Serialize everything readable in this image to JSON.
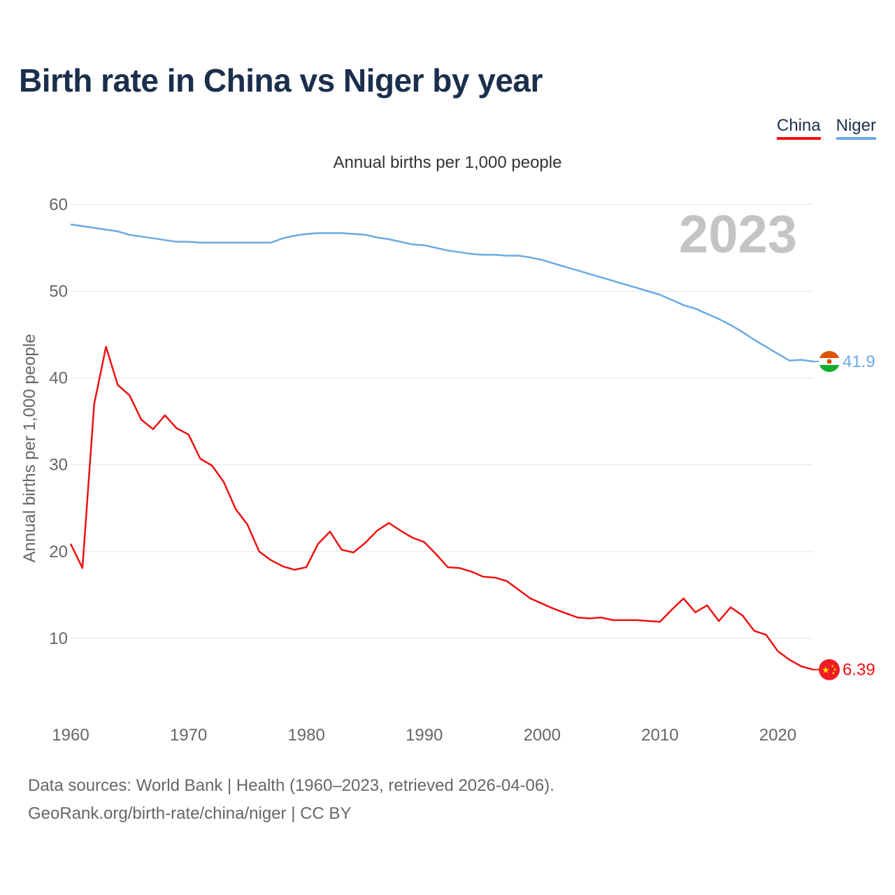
{
  "title": "Birth rate in China vs Niger by year",
  "legend": {
    "china_label": "China",
    "niger_label": "Niger"
  },
  "footer": {
    "line1": "Data sources: World Bank | Health (1960–2023, retrieved 2026-04-06).",
    "line2": "GeoRank.org/birth-rate/china/niger | CC BY"
  },
  "colors": {
    "china": "#ee1111",
    "niger": "#6aaae4",
    "watermark": "#c4c4c4",
    "grid": "#e6e6e6",
    "axis_text": "#666666"
  },
  "chart_data": {
    "type": "line",
    "subtitle": "Annual births per 1,000 people",
    "ylabel": "Annual births per 1,000 people",
    "xlabel": "",
    "year_watermark": "2023",
    "xlim": [
      1960,
      2023
    ],
    "ylim": [
      2.5,
      61
    ],
    "y_ticks": [
      10,
      20,
      30,
      40,
      50,
      60
    ],
    "x_ticks": [
      1960,
      1970,
      1980,
      1990,
      2000,
      2010,
      2020
    ],
    "x": [
      1960,
      1961,
      1962,
      1963,
      1964,
      1965,
      1966,
      1967,
      1968,
      1969,
      1970,
      1971,
      1972,
      1973,
      1974,
      1975,
      1976,
      1977,
      1978,
      1979,
      1980,
      1981,
      1982,
      1983,
      1984,
      1985,
      1986,
      1987,
      1988,
      1989,
      1990,
      1991,
      1992,
      1993,
      1994,
      1995,
      1996,
      1997,
      1998,
      1999,
      2000,
      2001,
      2002,
      2003,
      2004,
      2005,
      2006,
      2007,
      2008,
      2009,
      2010,
      2011,
      2012,
      2013,
      2014,
      2015,
      2016,
      2017,
      2018,
      2019,
      2020,
      2021,
      2022,
      2023
    ],
    "series": [
      {
        "name": "China",
        "end_label": "6.39",
        "values": [
          20.9,
          18.1,
          37.0,
          43.6,
          39.2,
          38.0,
          35.2,
          34.1,
          35.7,
          34.2,
          33.5,
          30.7,
          29.9,
          28.0,
          24.9,
          23.1,
          20.0,
          19.0,
          18.3,
          17.9,
          18.2,
          20.9,
          22.3,
          20.2,
          19.9,
          21.0,
          22.4,
          23.3,
          22.4,
          21.6,
          21.1,
          19.7,
          18.2,
          18.1,
          17.7,
          17.1,
          17.0,
          16.6,
          15.6,
          14.6,
          14.0,
          13.4,
          12.9,
          12.4,
          12.3,
          12.4,
          12.1,
          12.1,
          12.1,
          12.0,
          11.9,
          13.3,
          14.6,
          13.0,
          13.8,
          11.99,
          13.57,
          12.64,
          10.86,
          10.41,
          8.52,
          7.52,
          6.77,
          6.39
        ]
      },
      {
        "name": "Niger",
        "end_label": "41.9",
        "values": [
          57.7,
          57.5,
          57.3,
          57.1,
          56.9,
          56.5,
          56.3,
          56.1,
          55.9,
          55.7,
          55.7,
          55.6,
          55.6,
          55.6,
          55.6,
          55.6,
          55.6,
          55.6,
          56.1,
          56.4,
          56.6,
          56.7,
          56.7,
          56.7,
          56.6,
          56.5,
          56.2,
          56.0,
          55.7,
          55.4,
          55.3,
          55.0,
          54.7,
          54.5,
          54.3,
          54.2,
          54.2,
          54.1,
          54.1,
          53.9,
          53.6,
          53.2,
          52.8,
          52.4,
          52.0,
          51.6,
          51.2,
          50.8,
          50.4,
          50.0,
          49.6,
          49.0,
          48.4,
          48.0,
          47.4,
          46.8,
          46.1,
          45.3,
          44.4,
          43.6,
          42.8,
          42.0,
          42.1,
          41.9
        ]
      }
    ]
  }
}
